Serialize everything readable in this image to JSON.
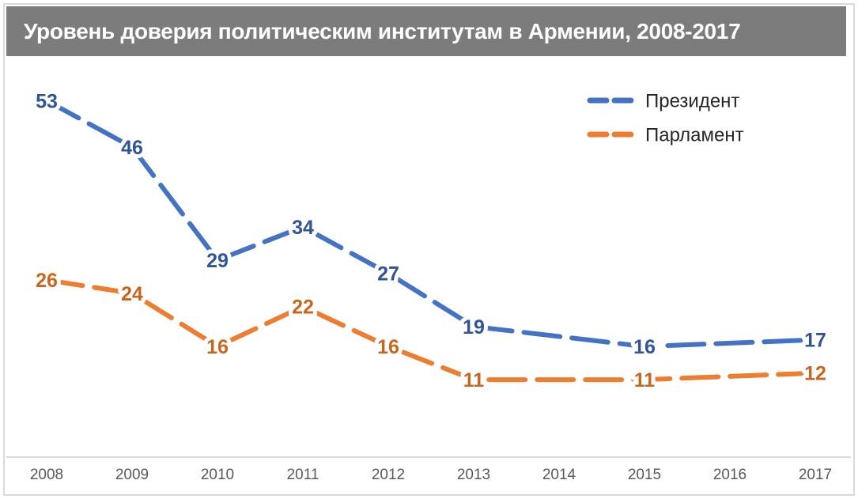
{
  "title": {
    "text": "Уровень доверия политическим институтам в Армении, 2008-2017"
  },
  "colors": {
    "background": "#FFFFFF",
    "title_bar_bg": "#7C7C7C",
    "title_text": "#FFFFFF",
    "frame_border": "#D9D9D9",
    "axis_line": "#D9D9D9",
    "axis_label": "#595959",
    "legend_text": "#262626",
    "label_halo": "#FFFFFF"
  },
  "chart_data": {
    "type": "line",
    "title": "Уровень доверия политическим институтам в Армении, 2008-2017",
    "categories": [
      "2008",
      "2009",
      "2010",
      "2011",
      "2012",
      "2013",
      "2014",
      "2015",
      "2016",
      "2017"
    ],
    "series": [
      {
        "id": "president",
        "name": "Президент",
        "color": "#4472C4",
        "label_color": "#2F5597",
        "line_style": "dashed",
        "values": [
          53,
          46,
          29,
          34,
          27,
          19,
          null,
          16,
          null,
          17
        ]
      },
      {
        "id": "parliament",
        "name": "Парламент",
        "color": "#ED7D31",
        "label_color": "#C9661D",
        "line_style": "dashed",
        "values": [
          26,
          24,
          16,
          22,
          16,
          11,
          null,
          11,
          null,
          12
        ]
      }
    ],
    "data_labels": "centered-on-points",
    "legend_position": "top-right-inside",
    "grid": false,
    "y_axis_visible": false,
    "ylim": [
      0,
      60
    ]
  }
}
